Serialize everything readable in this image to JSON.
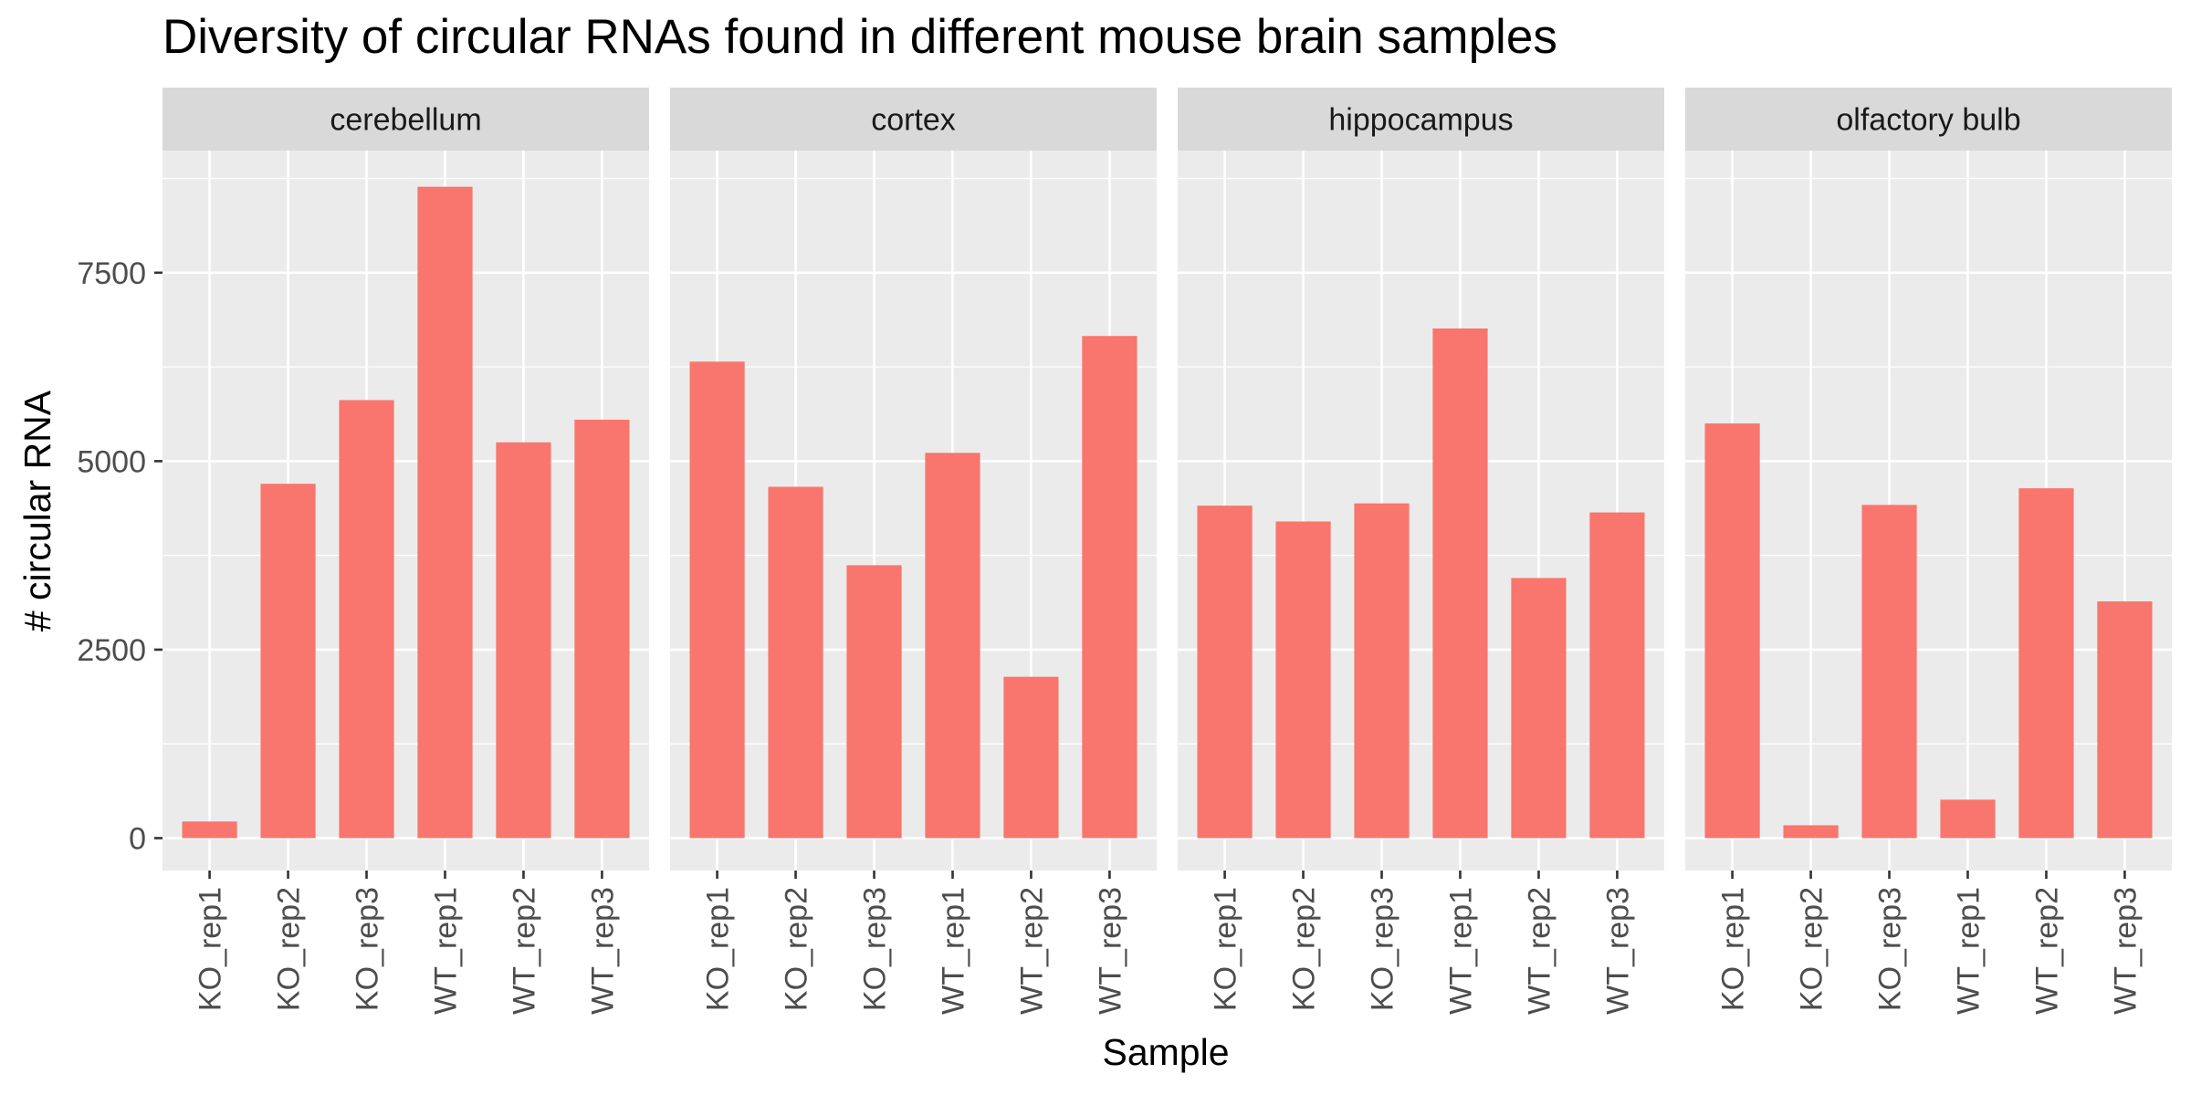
{
  "chart_data": {
    "type": "bar",
    "title": "Diversity of circular RNAs found in different mouse brain samples",
    "xlabel": "Sample",
    "ylabel": "# circular RNA",
    "ylim": [
      -430,
      9120
    ],
    "yticks": [
      0,
      2500,
      5000,
      7500
    ],
    "ytick_labels": [
      "0",
      "2500",
      "5000",
      "7500"
    ],
    "categories": [
      "KO_rep1",
      "KO_rep2",
      "KO_rep3",
      "WT_rep1",
      "WT_rep2",
      "WT_rep3"
    ],
    "grid": true,
    "bar_color": "#F8766D",
    "panel_background": "#EBEBEB",
    "strip_background": "#D9D9D9",
    "grid_color": "#FFFFFF",
    "facets": [
      {
        "name": "cerebellum",
        "values": [
          220,
          4700,
          5810,
          8640,
          5250,
          5550
        ]
      },
      {
        "name": "cortex",
        "values": [
          6320,
          4660,
          3620,
          5110,
          2140,
          6660
        ]
      },
      {
        "name": "hippocampus",
        "values": [
          4410,
          4200,
          4440,
          6760,
          3450,
          4320
        ]
      },
      {
        "name": "olfactory bulb",
        "values": [
          5500,
          170,
          4420,
          510,
          4640,
          3140
        ]
      }
    ]
  }
}
